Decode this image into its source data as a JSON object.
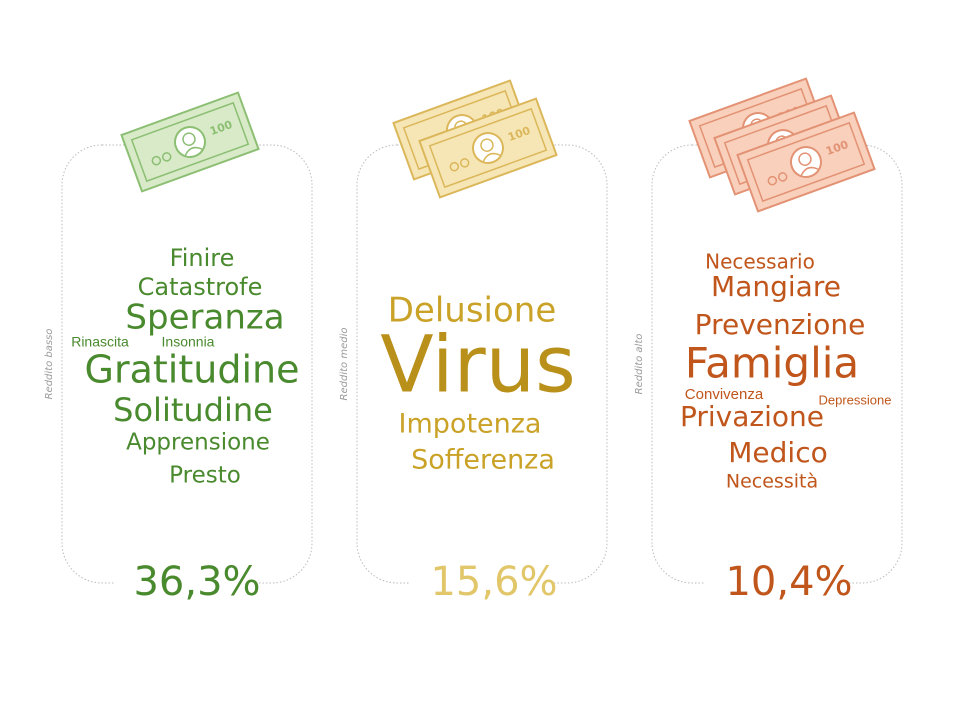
{
  "panels": [
    {
      "label": "Reddito basso",
      "bill_label": "100",
      "percentage": "36,3%",
      "words": [
        "Finire",
        "Catastrofe",
        "Speranza",
        "Rinascita",
        "Insonnia",
        "Gratitudine",
        "Solitudine",
        "Apprensione",
        "Presto"
      ]
    },
    {
      "label": "Reddito medio",
      "bill_label": "100",
      "percentage": "15,6%",
      "words": [
        "Delusione",
        "Virus",
        "Impotenza",
        "Sofferenza"
      ]
    },
    {
      "label": "Reddito alto",
      "bill_label": "100",
      "percentage": "10,4%",
      "words": [
        "Necessario",
        "Mangiare",
        "Prevenzione",
        "Famiglia",
        "Convivenza",
        "Depressione",
        "Privazione",
        "Medico",
        "Necessità"
      ]
    }
  ]
}
